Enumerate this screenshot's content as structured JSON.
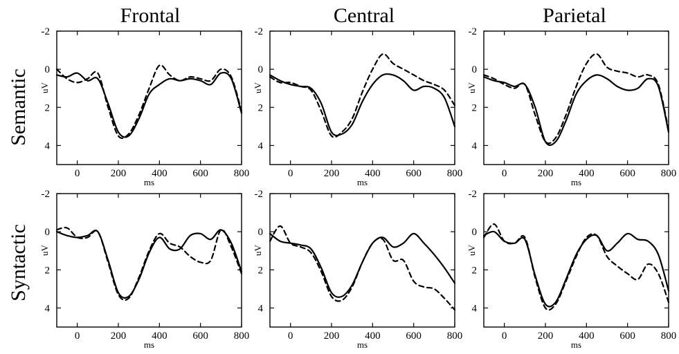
{
  "figure": {
    "columns": [
      "Frontal",
      "Central",
      "Parietal"
    ],
    "rows": [
      "Semantic",
      "Syntactic"
    ]
  },
  "chart_data": {
    "type": "line",
    "xlabel": "ms",
    "ylabel": "uV",
    "xlim": [
      -100,
      800
    ],
    "ylim": [
      -2,
      5
    ],
    "y_inverted": true,
    "x_ticks": [
      0,
      200,
      400,
      600,
      800
    ],
    "y_ticks": [
      -2,
      0,
      2,
      4
    ],
    "grid": false,
    "x": [
      -100,
      -50,
      0,
      50,
      100,
      150,
      200,
      250,
      300,
      350,
      400,
      450,
      500,
      550,
      600,
      650,
      700,
      750,
      800
    ],
    "panels": [
      {
        "row": "Semantic",
        "column": "Frontal",
        "series": [
          {
            "style": "solid",
            "values": [
              0.3,
              0.4,
              0.2,
              0.6,
              0.5,
              1.8,
              3.3,
              3.5,
              2.6,
              1.3,
              0.8,
              0.5,
              0.6,
              0.5,
              0.6,
              0.8,
              0.2,
              0.5,
              2.3
            ]
          },
          {
            "style": "dashed",
            "values": [
              0.0,
              0.5,
              0.7,
              0.5,
              0.2,
              2.0,
              3.5,
              3.4,
              2.4,
              1.0,
              -0.2,
              0.3,
              0.6,
              0.4,
              0.5,
              0.6,
              0.0,
              0.4,
              2.2
            ]
          }
        ]
      },
      {
        "row": "Semantic",
        "column": "Central",
        "series": [
          {
            "style": "solid",
            "values": [
              0.3,
              0.6,
              0.8,
              0.9,
              1.0,
              1.8,
              3.3,
              3.4,
              2.9,
              1.7,
              0.8,
              0.3,
              0.3,
              0.6,
              1.1,
              0.9,
              1.0,
              1.5,
              3.0
            ]
          },
          {
            "style": "dashed",
            "values": [
              0.4,
              0.7,
              0.7,
              0.9,
              1.1,
              2.2,
              3.5,
              3.3,
              2.6,
              1.2,
              0.0,
              -0.8,
              -0.3,
              0.0,
              0.3,
              0.6,
              0.8,
              1.1,
              1.9
            ]
          }
        ]
      },
      {
        "row": "Semantic",
        "column": "Parietal",
        "series": [
          {
            "style": "solid",
            "values": [
              0.4,
              0.6,
              0.7,
              0.9,
              0.8,
              2.0,
              3.8,
              3.8,
              2.7,
              1.3,
              0.6,
              0.3,
              0.5,
              0.9,
              1.1,
              1.0,
              0.5,
              0.9,
              3.3
            ]
          },
          {
            "style": "dashed",
            "values": [
              0.3,
              0.5,
              0.8,
              1.0,
              0.8,
              2.4,
              3.8,
              3.6,
              2.4,
              0.9,
              -0.3,
              -0.8,
              -0.1,
              0.1,
              0.2,
              0.4,
              0.3,
              0.8,
              3.2
            ]
          }
        ]
      },
      {
        "row": "Syntactic",
        "column": "Frontal",
        "series": [
          {
            "style": "solid",
            "values": [
              0.0,
              0.2,
              0.3,
              0.2,
              0.0,
              1.5,
              3.2,
              3.4,
              2.5,
              1.1,
              0.3,
              0.9,
              0.9,
              0.2,
              0.1,
              0.4,
              -0.1,
              0.6,
              2.1
            ]
          },
          {
            "style": "dashed",
            "values": [
              -0.1,
              -0.2,
              0.3,
              0.3,
              0.0,
              1.6,
              3.3,
              3.5,
              2.4,
              1.0,
              0.1,
              0.6,
              0.8,
              1.3,
              1.6,
              1.5,
              -0.1,
              0.8,
              2.2
            ]
          }
        ]
      },
      {
        "row": "Syntactic",
        "column": "Central",
        "series": [
          {
            "style": "solid",
            "values": [
              0.1,
              0.5,
              0.6,
              0.7,
              0.9,
              1.9,
              3.2,
              3.4,
              2.8,
              1.6,
              0.6,
              0.3,
              0.8,
              0.6,
              0.1,
              0.6,
              1.2,
              1.9,
              2.7
            ]
          },
          {
            "style": "dashed",
            "values": [
              0.5,
              -0.3,
              0.6,
              0.8,
              1.1,
              2.1,
              3.4,
              3.6,
              2.9,
              1.6,
              0.6,
              0.4,
              1.5,
              1.5,
              2.6,
              2.9,
              3.0,
              3.5,
              4.1
            ]
          }
        ]
      },
      {
        "row": "Syntactic",
        "column": "Parietal",
        "series": [
          {
            "style": "solid",
            "values": [
              0.2,
              0.0,
              0.5,
              0.6,
              0.4,
              2.3,
              3.8,
              3.7,
              2.5,
              1.2,
              0.4,
              0.2,
              1.0,
              0.6,
              0.1,
              0.4,
              0.5,
              1.2,
              3.1
            ]
          },
          {
            "style": "dashed",
            "values": [
              0.3,
              -0.4,
              0.5,
              0.6,
              0.3,
              2.4,
              4.0,
              3.8,
              2.6,
              1.3,
              0.3,
              0.2,
              1.3,
              1.8,
              2.2,
              2.5,
              1.7,
              2.2,
              3.7
            ]
          }
        ]
      }
    ]
  }
}
